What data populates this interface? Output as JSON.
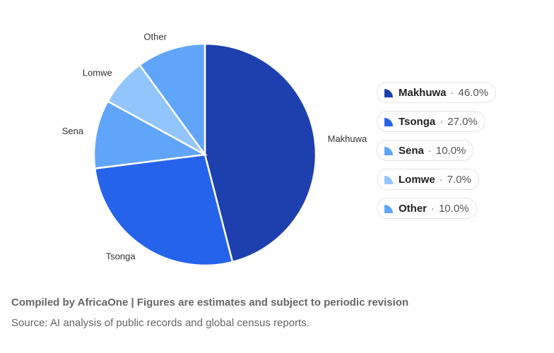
{
  "chart_data": {
    "type": "pie",
    "title": "",
    "categories": [
      "Makhuwa",
      "Tsonga",
      "Sena",
      "Lomwe",
      "Other"
    ],
    "values": [
      46.0,
      27.0,
      10.0,
      7.0,
      10.0
    ],
    "colors": [
      "#1e40af",
      "#2563eb",
      "#60a5fa",
      "#93c5fd",
      "#60a5fa"
    ],
    "value_suffix": "%",
    "legend_placement": "right",
    "legend": [
      {
        "name": "Makhuwa",
        "pct": "46.0%"
      },
      {
        "name": "Tsonga",
        "pct": "27.0%"
      },
      {
        "name": "Sena",
        "pct": "10.0%"
      },
      {
        "name": "Lomwe",
        "pct": "7.0%"
      },
      {
        "name": "Other",
        "pct": "10.0%"
      }
    ]
  },
  "footer": {
    "credit": "Compiled by AfricaOne | Figures are estimates and subject to periodic revision",
    "source": "Source: AI analysis of public records and global census reports."
  }
}
